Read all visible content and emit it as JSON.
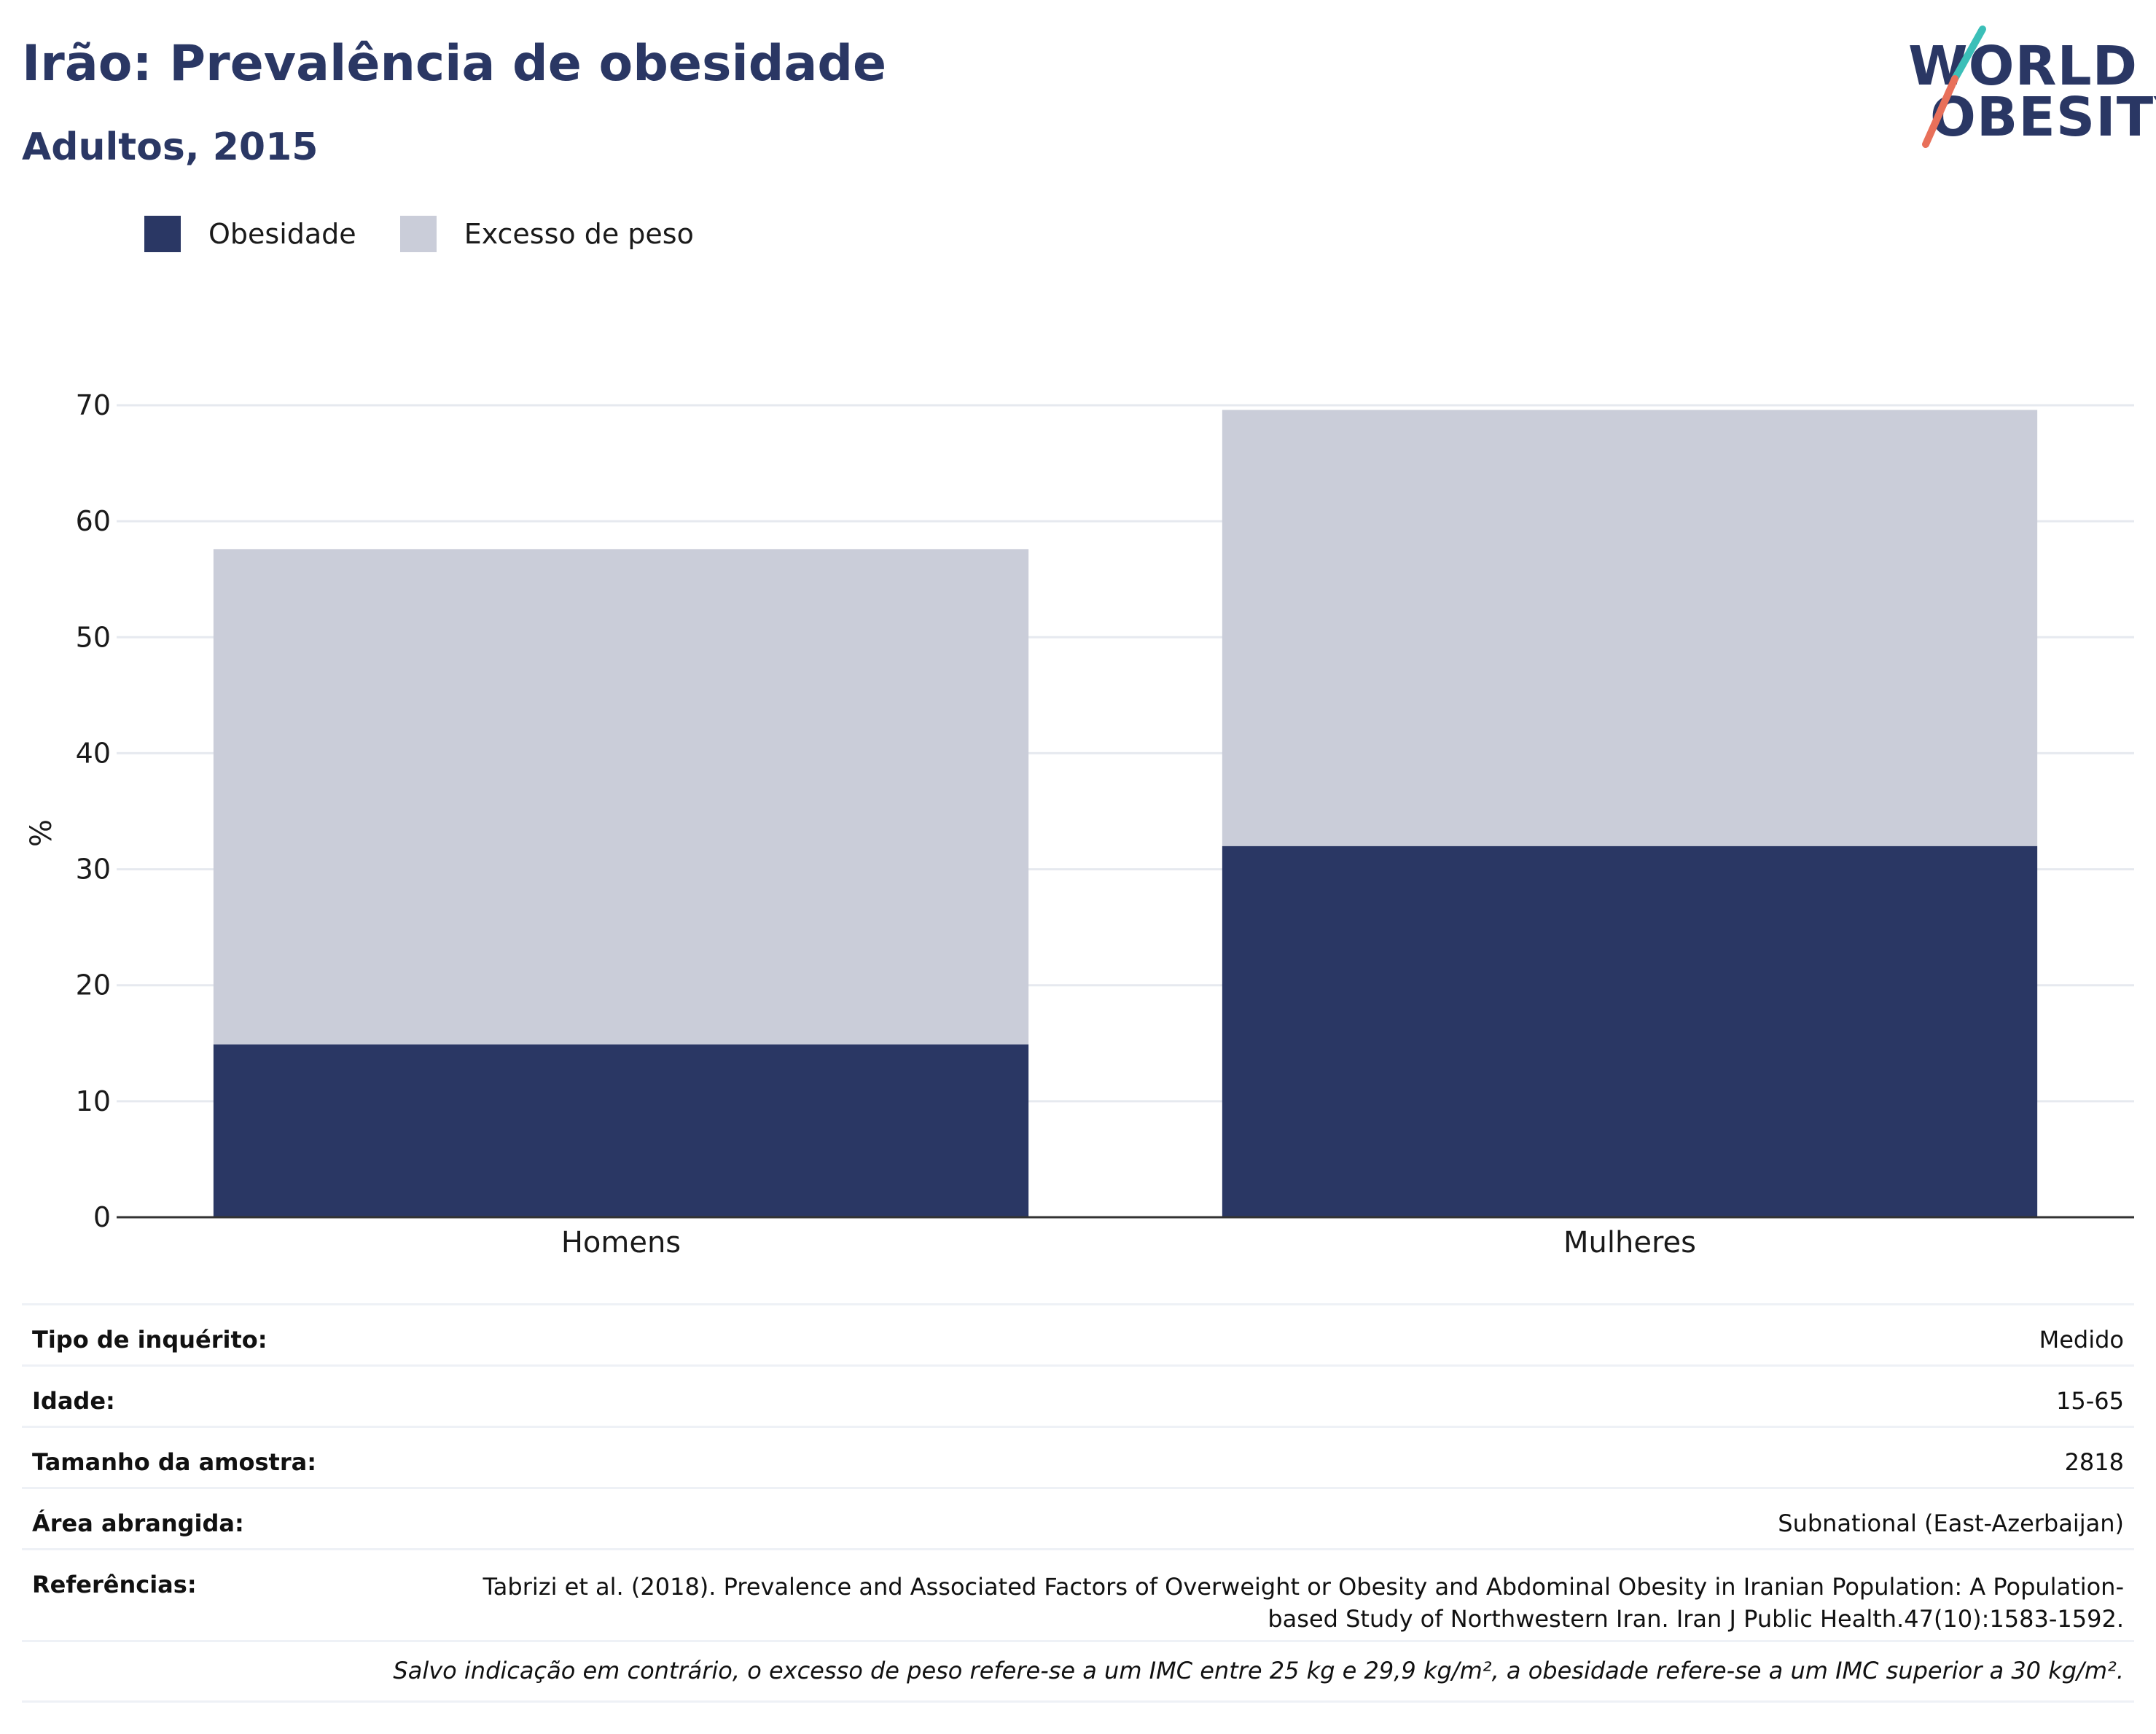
{
  "header": {
    "title": "Irão: Prevalência de obesidade",
    "subtitle": "Adultos, 2015"
  },
  "logo": {
    "line1": "WORLD",
    "line2": "OBESITY",
    "accent_colors": [
      "#3bbfb8",
      "#e8705a"
    ]
  },
  "legend": [
    {
      "label": "Obesidade",
      "color": "#2a3764"
    },
    {
      "label": "Excesso de peso",
      "color": "#cacdd9"
    }
  ],
  "chart_data": {
    "type": "bar",
    "stacked": true,
    "categories": [
      "Homens",
      "Mulheres"
    ],
    "series": [
      {
        "name": "Obesidade",
        "color": "#2a3764",
        "values": [
          14.9,
          32.0
        ]
      },
      {
        "name": "Excesso de peso",
        "color": "#cacdd9",
        "values": [
          42.7,
          37.6
        ]
      }
    ],
    "ylabel": "%",
    "ylim": [
      0,
      70
    ],
    "yticks": [
      0,
      10,
      20,
      30,
      40,
      50,
      60,
      70
    ],
    "grid": true,
    "legend_position": "top-left"
  },
  "info": [
    {
      "key": "Tipo de inquérito:",
      "value": "Medido"
    },
    {
      "key": "Idade:",
      "value": "15-65"
    },
    {
      "key": "Tamanho da amostra:",
      "value": "2818"
    },
    {
      "key": "Área abrangida:",
      "value": "Subnational (East-Azerbaijan)"
    },
    {
      "key": "Referências:",
      "value": "Tabrizi et al. (2018). Prevalence and Associated Factors of Overweight or Obesity and Abdominal Obesity in Iranian Population: A Population-based Study of Northwestern Iran. Iran J Public Health.47(10):1583-1592."
    }
  ],
  "note": "Salvo indicação em contrário, o excesso de peso refere-se a um IMC entre 25 kg e 29,9 kg/m², a obesidade refere-se a um IMC superior a 30 kg/m²."
}
